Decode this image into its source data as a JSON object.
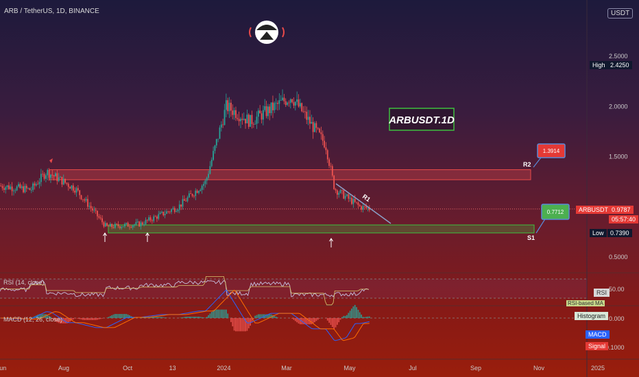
{
  "header": {
    "symbol": "ARB / TetherUS, 1D, BINANCE",
    "currency": "USDT"
  },
  "watermark": {
    "text": "ARBUSDT.1D"
  },
  "levels": {
    "r2": {
      "label": "R2",
      "price": "1.3914"
    },
    "s1": {
      "label": "S1",
      "price": "0.7712"
    },
    "r1": {
      "label": "R1"
    }
  },
  "price_axis": {
    "ticks": [
      "2.5000",
      "2.0000",
      "1.5000",
      "0.5000"
    ]
  },
  "badges": {
    "high": {
      "label": "High",
      "value": "2.4250"
    },
    "low": {
      "label": "Low",
      "value": "0.7390"
    },
    "last": {
      "label": "ARBUSDT",
      "value": "0.9787",
      "countdown": "05:57:40"
    }
  },
  "time_axis": {
    "ticks": [
      "Jun",
      "Aug",
      "Oct",
      "13",
      "2024",
      "Mar",
      "May",
      "Jul",
      "Sep",
      "Nov",
      "2025"
    ]
  },
  "rsi": {
    "title": "RSI (14, close)",
    "value": "50.00",
    "tag": "RSI",
    "ref": "RSI-based MA"
  },
  "macd": {
    "title": "MACD (12, 26, close)",
    "zero": "0.000",
    "low": "-0.1000",
    "tags": {
      "histogram": "Histogram",
      "macd": "MACD",
      "signal": "Signal"
    }
  },
  "colors": {
    "up": "#26a69a",
    "down": "#ef5350",
    "resistance": "#e84a4a",
    "support": "#3fbf3f",
    "macd": "#2962ff",
    "signal": "#ff6d00"
  },
  "chart_data": {
    "type": "line",
    "title": "ARB / TetherUS, 1D, BINANCE",
    "yscale": "linear",
    "ylim": [
      0.3,
      2.75
    ],
    "x": [
      "2023-06",
      "2023-07",
      "2023-07-25",
      "2023-08",
      "2023-09-10",
      "2023-10",
      "2023-11",
      "2023-12-13",
      "2024-01",
      "2024-02",
      "2024-03",
      "2024-04-10",
      "2024-04-14",
      "2024-05",
      "2024-05-20"
    ],
    "series": [
      {
        "name": "ARBUSDT",
        "values": [
          1.21,
          1.17,
          1.35,
          1.18,
          0.8,
          0.83,
          1.0,
          1.25,
          2.0,
          1.85,
          2.1,
          1.62,
          1.18,
          1.0,
          0.98
        ]
      }
    ],
    "zones": [
      {
        "name": "R2",
        "low": 1.27,
        "high": 1.37
      },
      {
        "name": "S1",
        "low": 0.74,
        "high": 0.82
      }
    ],
    "levels": {
      "high": 2.425,
      "low": 0.739,
      "last": 0.9787
    }
  }
}
